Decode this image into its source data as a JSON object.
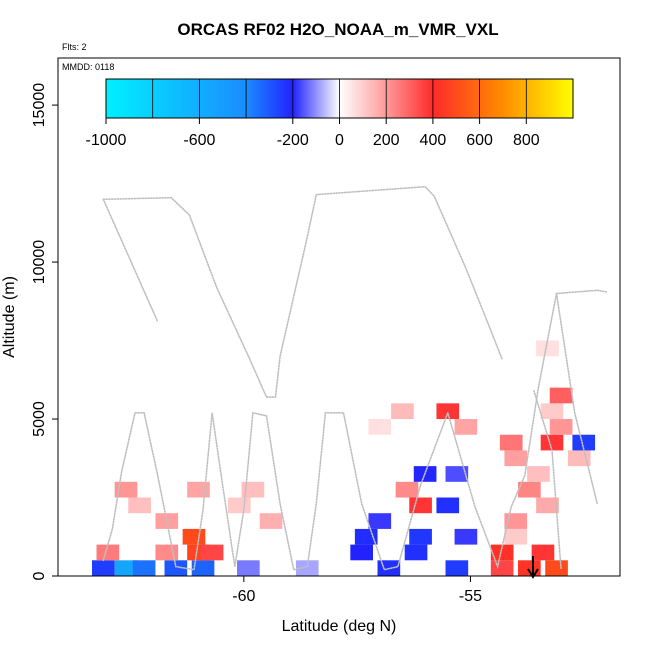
{
  "chart_data": {
    "type": "heatmap",
    "title": "ORCAS RF02 H2O_NOAA_m_VMR_VXL",
    "flights_label": "Flts: 2",
    "date_label": "MMDD: 0118",
    "xlabel": "Latitude (deg N)",
    "ylabel": "Altitude (m)",
    "xlim": [
      -64.1,
      -51.7
    ],
    "ylim": [
      0,
      16500
    ],
    "x_ticks": [
      -60,
      -55
    ],
    "x_tick_labels": [
      "-60",
      "-55"
    ],
    "y_ticks": [
      0,
      5000,
      10000,
      15000
    ],
    "y_tick_labels": [
      "0",
      "5000",
      "10000",
      "15000"
    ],
    "colorbar": {
      "range": [
        -1000,
        1000
      ],
      "ticks": [
        -1000,
        -600,
        -200,
        0,
        200,
        400,
        600,
        800
      ],
      "tick_labels": [
        "-1000",
        "-600",
        "-200",
        "0",
        "200",
        "400",
        "600",
        "800"
      ],
      "colors": {
        "cyan": "#00f0ff",
        "blue": "#2222ff",
        "white": "#ffffff",
        "red": "#ff2a2a",
        "orange": "#ff8c00",
        "yellow": "#ffff00"
      }
    },
    "track_color": "#bfbfbf",
    "track": [
      [
        -63.1,
        500
      ],
      [
        -62.9,
        1500
      ],
      [
        -62.7,
        3300
      ],
      [
        -62.4,
        5200
      ],
      [
        -62.2,
        5200
      ],
      [
        -61.9,
        3200
      ],
      [
        -61.5,
        300
      ],
      [
        -61.1,
        200
      ],
      [
        -60.9,
        2100
      ],
      [
        -60.7,
        5200
      ],
      [
        -60.5,
        3200
      ],
      [
        -60.2,
        300
      ],
      [
        -60.0,
        2100
      ],
      [
        -59.8,
        5200
      ],
      [
        -59.5,
        5100
      ],
      [
        -59.2,
        2300
      ],
      [
        -58.9,
        200
      ],
      [
        -58.6,
        300
      ],
      [
        -58.4,
        2300
      ],
      [
        -58.2,
        5200
      ],
      [
        -57.8,
        5200
      ],
      [
        -57.4,
        2300
      ],
      [
        -56.9,
        200
      ],
      [
        -56.6,
        300
      ],
      [
        -56.1,
        2900
      ],
      [
        -55.5,
        5200
      ],
      [
        -54.9,
        2200
      ],
      [
        -54.4,
        300
      ],
      [
        -54.1,
        2200
      ],
      [
        -53.8,
        3200
      ],
      [
        -53.5,
        6000
      ],
      [
        -53.1,
        9000
      ],
      [
        -52.2,
        9100
      ],
      [
        -52.0,
        9050
      ]
    ],
    "track2": [
      [
        -63.1,
        12000
      ],
      [
        -61.6,
        12050
      ],
      [
        -61.2,
        11500
      ],
      [
        -60.6,
        9200
      ],
      [
        -59.9,
        7000
      ],
      [
        -59.5,
        5700
      ],
      [
        -59.3,
        5700
      ],
      [
        -59.2,
        7000
      ],
      [
        -58.6,
        10800
      ],
      [
        -58.4,
        12150
      ],
      [
        -56.0,
        12400
      ],
      [
        -55.8,
        12100
      ],
      [
        -55.1,
        9800
      ],
      [
        -54.6,
        8000
      ],
      [
        -54.3,
        6900
      ]
    ],
    "track3": [
      [
        -63.1,
        12000
      ],
      [
        -61.9,
        8100
      ]
    ],
    "track4": [
      [
        -53.1,
        9000
      ],
      [
        -52.7,
        5200
      ],
      [
        -52.2,
        2300
      ]
    ],
    "track5": [
      [
        -53.6,
        5900
      ],
      [
        -53.2,
        4000
      ],
      [
        -53.0,
        200
      ]
    ],
    "cells": [
      {
        "x": -63.1,
        "y": 250,
        "v": -300
      },
      {
        "x": -62.6,
        "y": 250,
        "v": -700
      },
      {
        "x": -62.2,
        "y": 250,
        "v": -500
      },
      {
        "x": -61.5,
        "y": 250,
        "v": -400
      },
      {
        "x": -60.9,
        "y": 250,
        "v": -450
      },
      {
        "x": -59.9,
        "y": 250,
        "v": -120
      },
      {
        "x": -58.6,
        "y": 250,
        "v": -80
      },
      {
        "x": -56.8,
        "y": 250,
        "v": -250
      },
      {
        "x": -55.3,
        "y": 250,
        "v": -300
      },
      {
        "x": -54.3,
        "y": 250,
        "v": 350
      },
      {
        "x": -53.7,
        "y": 250,
        "v": 430
      },
      {
        "x": -53.1,
        "y": 250,
        "v": 500
      },
      {
        "x": -63.0,
        "y": 750,
        "v": 250
      },
      {
        "x": -61.7,
        "y": 750,
        "v": 220
      },
      {
        "x": -61.0,
        "y": 750,
        "v": 480
      },
      {
        "x": -60.7,
        "y": 750,
        "v": 350
      },
      {
        "x": -57.4,
        "y": 750,
        "v": -200
      },
      {
        "x": -56.2,
        "y": 750,
        "v": -250
      },
      {
        "x": -54.3,
        "y": 750,
        "v": 420
      },
      {
        "x": -53.4,
        "y": 750,
        "v": 380
      },
      {
        "x": -61.1,
        "y": 1250,
        "v": 500
      },
      {
        "x": -57.3,
        "y": 1250,
        "v": -240
      },
      {
        "x": -56.1,
        "y": 1250,
        "v": -280
      },
      {
        "x": -55.1,
        "y": 1250,
        "v": -180
      },
      {
        "x": -54.0,
        "y": 1250,
        "v": 100
      },
      {
        "x": -61.7,
        "y": 1750,
        "v": 180
      },
      {
        "x": -59.4,
        "y": 1750,
        "v": 150
      },
      {
        "x": -57.0,
        "y": 1750,
        "v": -180
      },
      {
        "x": -54.0,
        "y": 1750,
        "v": 200
      },
      {
        "x": -62.3,
        "y": 2250,
        "v": 120
      },
      {
        "x": -60.1,
        "y": 2250,
        "v": 100
      },
      {
        "x": -56.1,
        "y": 2250,
        "v": 380
      },
      {
        "x": -55.5,
        "y": 2250,
        "v": -250
      },
      {
        "x": -53.3,
        "y": 2250,
        "v": 160
      },
      {
        "x": -62.6,
        "y": 2750,
        "v": 200
      },
      {
        "x": -61.0,
        "y": 2750,
        "v": 170
      },
      {
        "x": -59.8,
        "y": 2750,
        "v": 120
      },
      {
        "x": -56.4,
        "y": 2750,
        "v": 220
      },
      {
        "x": -53.7,
        "y": 2750,
        "v": 230
      },
      {
        "x": -56.0,
        "y": 3250,
        "v": -220
      },
      {
        "x": -55.3,
        "y": 3250,
        "v": -160
      },
      {
        "x": -53.5,
        "y": 3250,
        "v": 120
      },
      {
        "x": -54.0,
        "y": 3750,
        "v": 180
      },
      {
        "x": -52.6,
        "y": 3750,
        "v": 130
      },
      {
        "x": -54.1,
        "y": 4250,
        "v": 260
      },
      {
        "x": -53.2,
        "y": 4250,
        "v": 380
      },
      {
        "x": -52.5,
        "y": 4250,
        "v": -300
      },
      {
        "x": -57.0,
        "y": 4750,
        "v": 60
      },
      {
        "x": -55.1,
        "y": 4750,
        "v": 170
      },
      {
        "x": -53.0,
        "y": 4750,
        "v": 200
      },
      {
        "x": -56.5,
        "y": 5250,
        "v": 130
      },
      {
        "x": -55.5,
        "y": 5250,
        "v": 380
      },
      {
        "x": -53.2,
        "y": 5250,
        "v": 100
      },
      {
        "x": -53.0,
        "y": 5750,
        "v": 300
      },
      {
        "x": -53.3,
        "y": 7250,
        "v": 60
      }
    ]
  }
}
